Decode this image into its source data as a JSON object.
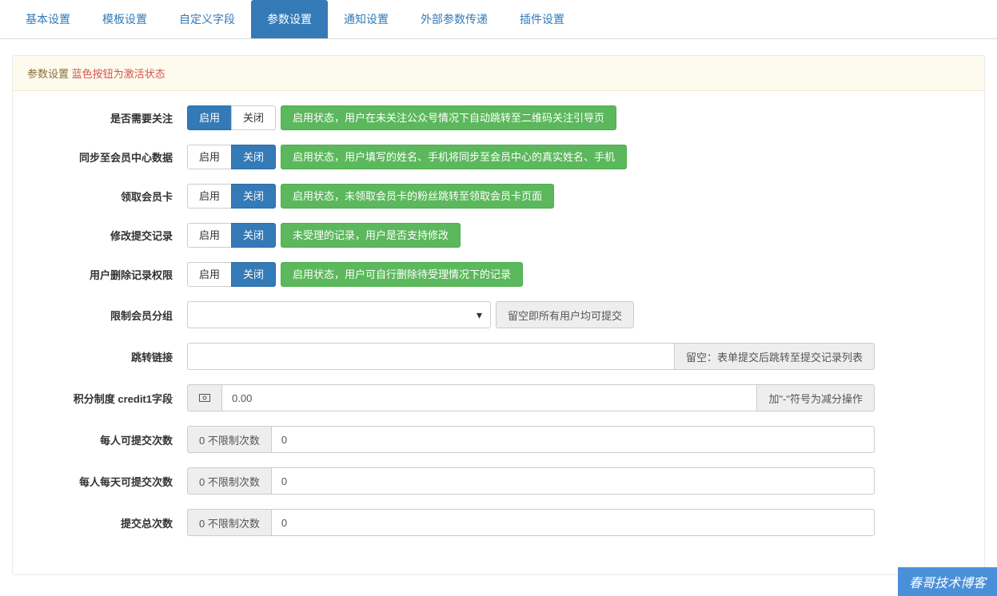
{
  "tabs": {
    "items": [
      "基本设置",
      "模板设置",
      "自定义字段",
      "参数设置",
      "通知设置",
      "外部参数传递",
      "插件设置"
    ],
    "activeIndex": 3,
    "activeBg": "#337ab7",
    "linkColor": "#337ab7"
  },
  "header": {
    "title": "参数设置",
    "note": "蓝色按钮为激活状态",
    "noteColor": "#d9534f",
    "bg": "#fdfbed"
  },
  "toggles": {
    "enableLabel": "启用",
    "disableLabel": "关闭",
    "rows": [
      {
        "label": "是否需要关注",
        "active": "enable",
        "desc": "启用状态，用户在未关注公众号情况下自动跳转至二维码关注引导页"
      },
      {
        "label": "同步至会员中心数据",
        "active": "disable",
        "desc": "启用状态，用户填写的姓名、手机将同步至会员中心的真实姓名、手机"
      },
      {
        "label": "领取会员卡",
        "active": "disable",
        "desc": "启用状态，未领取会员卡的粉丝跳转至领取会员卡页面"
      },
      {
        "label": "修改提交记录",
        "active": "disable",
        "desc": "未受理的记录，用户是否支持修改"
      },
      {
        "label": "用户删除记录权限",
        "active": "disable",
        "desc": "启用状态，用户可自行删除待受理情况下的记录"
      }
    ]
  },
  "groupLimit": {
    "label": "限制会员分组",
    "value": "",
    "hint": "留空即所有用户均可提交"
  },
  "redirect": {
    "label": "跳转链接",
    "value": "",
    "hint": "留空：表单提交后跳转至提交记录列表"
  },
  "credit": {
    "label": "积分制度 credit1字段",
    "icon": "⬚",
    "value": "0.00",
    "hint": "加\"-\"符号为减分操作"
  },
  "limits": {
    "addon": "0 不限制次数",
    "rows": [
      {
        "label": "每人可提交次数",
        "value": "0"
      },
      {
        "label": "每人每天可提交次数",
        "value": "0"
      },
      {
        "label": "提交总次数",
        "value": "0"
      }
    ]
  },
  "watermark": "春哥技术博客",
  "colors": {
    "primary": "#337ab7",
    "success": "#5cb85c",
    "border": "#cccccc",
    "addonBg": "#eeeeee"
  }
}
